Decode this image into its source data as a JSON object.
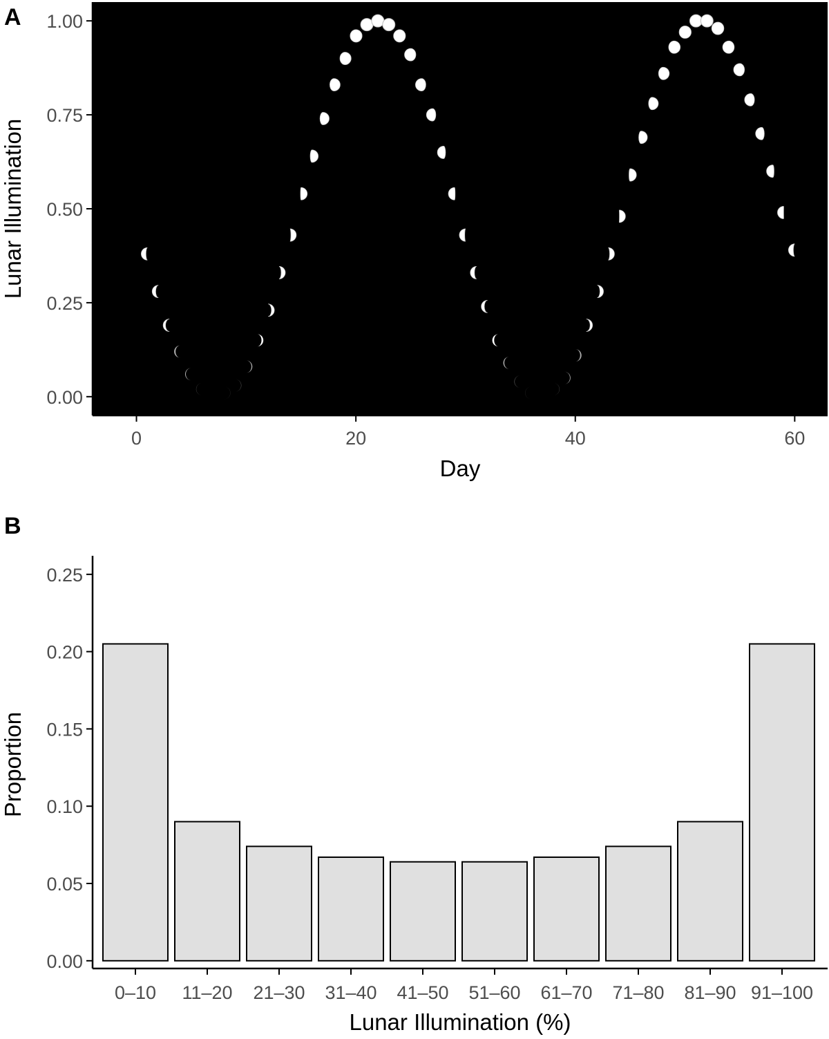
{
  "chart_data": [
    {
      "type": "scatter",
      "panel_label": "A",
      "xlabel": "Day",
      "ylabel": "Lunar Illumination",
      "xlim": [
        -4,
        63
      ],
      "ylim": [
        -0.05,
        1.05
      ],
      "xticks": [
        0,
        20,
        40,
        60
      ],
      "xtick_labels": [
        "0",
        "20",
        "40",
        "60"
      ],
      "yticks": [
        0,
        0.25,
        0.5,
        0.75,
        1.0
      ],
      "ytick_labels": [
        "0.00",
        "0.25",
        "0.50",
        "0.75",
        "1.00"
      ],
      "background": "#000000",
      "marker": "moon-phase-icon",
      "grid": false,
      "x": [
        1,
        2,
        3,
        4,
        5,
        6,
        7,
        8,
        9,
        10,
        11,
        12,
        13,
        14,
        15,
        16,
        17,
        18,
        19,
        20,
        21,
        22,
        23,
        24,
        25,
        26,
        27,
        28,
        29,
        30,
        31,
        32,
        33,
        34,
        35,
        36,
        37,
        38,
        39,
        40,
        41,
        42,
        43,
        44,
        45,
        46,
        47,
        48,
        49,
        50,
        51,
        52,
        53,
        54,
        55,
        56,
        57,
        58,
        59,
        60
      ],
      "y": [
        0.38,
        0.28,
        0.19,
        0.12,
        0.06,
        0.02,
        0.0,
        0.01,
        0.03,
        0.08,
        0.15,
        0.23,
        0.33,
        0.43,
        0.54,
        0.64,
        0.74,
        0.83,
        0.9,
        0.96,
        0.99,
        1.0,
        0.99,
        0.96,
        0.91,
        0.83,
        0.75,
        0.65,
        0.54,
        0.43,
        0.33,
        0.24,
        0.15,
        0.09,
        0.04,
        0.01,
        0.0,
        0.02,
        0.05,
        0.11,
        0.19,
        0.28,
        0.38,
        0.48,
        0.59,
        0.69,
        0.78,
        0.86,
        0.93,
        0.97,
        1.0,
        1.0,
        0.98,
        0.93,
        0.87,
        0.79,
        0.7,
        0.6,
        0.49,
        0.39
      ]
    },
    {
      "type": "bar",
      "panel_label": "B",
      "xlabel": "Lunar Illumination (%)",
      "ylabel": "Proportion",
      "categories": [
        "0–10",
        "11–20",
        "21–30",
        "31–40",
        "41–50",
        "51–60",
        "61–70",
        "71–80",
        "81–90",
        "91–100"
      ],
      "values": [
        0.205,
        0.09,
        0.074,
        0.067,
        0.064,
        0.064,
        0.067,
        0.074,
        0.09,
        0.205
      ],
      "ylim": [
        -0.005,
        0.262
      ],
      "yticks": [
        0,
        0.05,
        0.1,
        0.15,
        0.2,
        0.25
      ],
      "ytick_labels": [
        "0.00",
        "0.05",
        "0.10",
        "0.15",
        "0.20",
        "0.25"
      ],
      "bar_color": "#e0e0e0",
      "grid": false
    }
  ]
}
